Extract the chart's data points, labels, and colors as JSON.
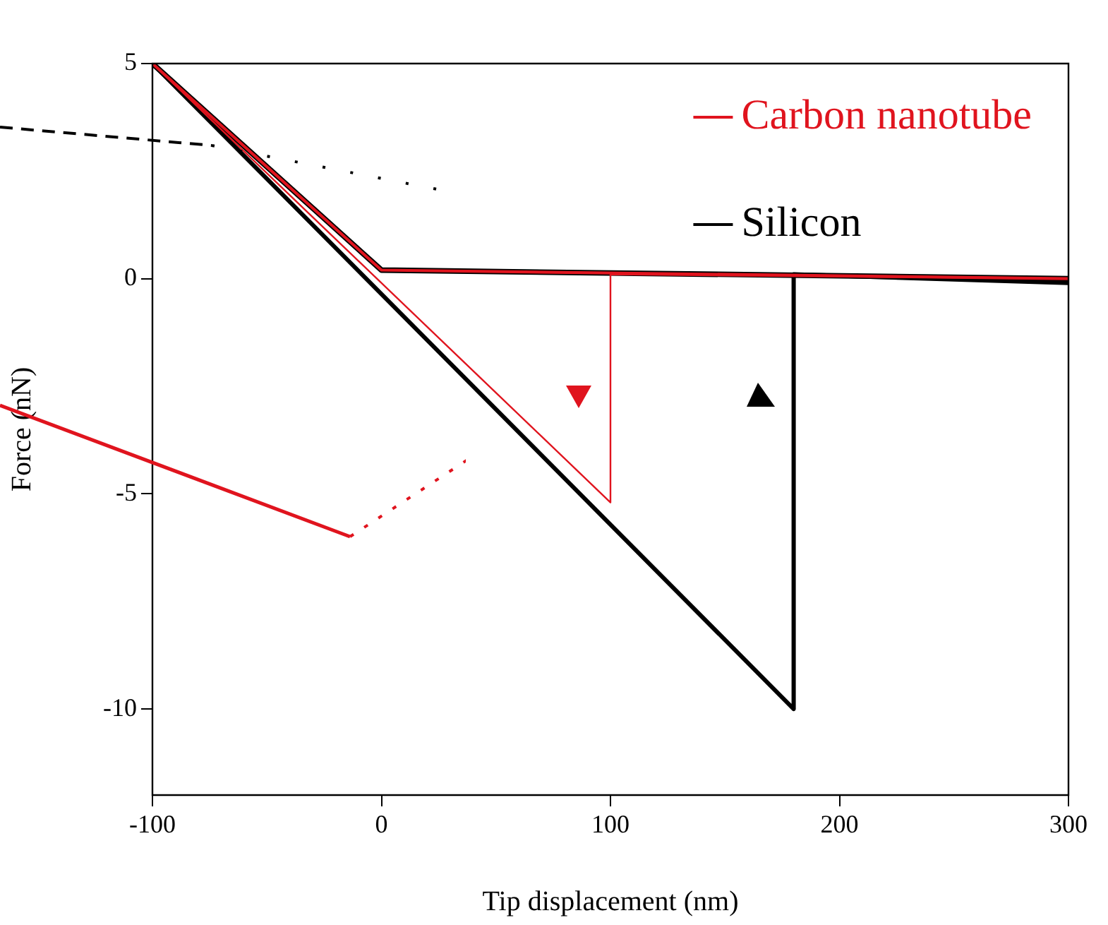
{
  "chart_data": {
    "type": "line",
    "xlabel": "Tip displacement (nm)",
    "ylabel": "Force (nN)",
    "xlim": [
      -100,
      300
    ],
    "xticks": [
      -100,
      0,
      100,
      200,
      300
    ],
    "ylim": [
      -12,
      5
    ],
    "yticks": [
      -10,
      -5,
      0,
      5
    ],
    "grid": false,
    "legend": "top right",
    "series": [
      {
        "name": "Carbon nanotube",
        "color": "#e0141e",
        "x": [
          -100,
          100,
          100,
          300
        ],
        "values": [
          5,
          -5.2,
          0.1,
          0
        ]
      },
      {
        "color": "#e0141e",
        "x": [
          -100,
          0,
          300
        ],
        "values": [
          5,
          0.2,
          0
        ]
      },
      {
        "name": "Silicon",
        "color": "#000000",
        "x": [
          -100,
          180,
          180,
          300
        ],
        "values": [
          5,
          -10,
          0.1,
          -0.1
        ]
      },
      {
        "color": "#000000",
        "x": [
          -100,
          0,
          300
        ],
        "values": [
          5,
          0.2,
          0
        ]
      }
    ]
  }
}
